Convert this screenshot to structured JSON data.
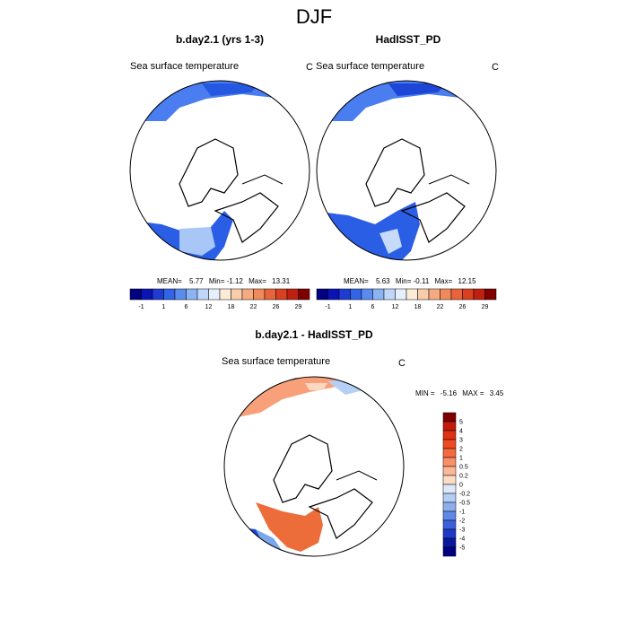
{
  "figure": {
    "title": "DJF"
  },
  "panels": [
    {
      "title": "b.day2.1 (yrs 1-3)",
      "variable": "Sea surface temperature",
      "units": "C",
      "stats": {
        "mean_label": "MEAN=",
        "mean": "5.77",
        "min_label": "Min=",
        "min": "-1.12",
        "max_label": "Max=",
        "max": "13.31"
      }
    },
    {
      "title": "HadISST_PD",
      "variable": "Sea surface temperature",
      "units": "C",
      "stats": {
        "mean_label": "MEAN=",
        "mean": "5.63",
        "min_label": "Min=",
        "min": "-0.11",
        "max_label": "Max=",
        "max": "12.15"
      }
    },
    {
      "title": "b.day2.1 - HadISST_PD",
      "variable": "Sea surface temperature",
      "units": "C",
      "stats": {
        "min_label": "MIN =",
        "min": "-5.16",
        "max_label": "MAX =",
        "max": "3.45"
      }
    }
  ],
  "chart_data": [
    {
      "type": "heatmap",
      "title": "b.day2.1 (yrs 1-3)",
      "subtitle": "Sea surface temperature",
      "units": "C",
      "projection": "north polar stereographic",
      "colorbar_orientation": "horizontal",
      "colorbar_labels": [
        "-1",
        "1",
        "6",
        "12",
        "18",
        "22",
        "26",
        "29"
      ],
      "colorbar_colors": [
        "#000080",
        "#0a14b4",
        "#1e3cd2",
        "#3264e6",
        "#5a8cf0",
        "#8cb4f5",
        "#bed7fa",
        "#e6f0fc",
        "#fcebd7",
        "#f9ccaa",
        "#f5aa80",
        "#f08a5a",
        "#e8643a",
        "#d94020",
        "#c02010",
        "#800000"
      ],
      "stats": {
        "mean": 5.77,
        "min": -1.12,
        "max": 13.31
      }
    },
    {
      "type": "heatmap",
      "title": "HadISST_PD",
      "subtitle": "Sea surface temperature",
      "units": "C",
      "projection": "north polar stereographic",
      "colorbar_orientation": "horizontal",
      "colorbar_labels": [
        "-1",
        "1",
        "6",
        "12",
        "18",
        "22",
        "26",
        "29"
      ],
      "colorbar_colors": [
        "#000080",
        "#0a14b4",
        "#1e3cd2",
        "#3264e6",
        "#5a8cf0",
        "#8cb4f5",
        "#bed7fa",
        "#e6f0fc",
        "#fcebd7",
        "#f9ccaa",
        "#f5aa80",
        "#f08a5a",
        "#e8643a",
        "#d94020",
        "#c02010",
        "#800000"
      ],
      "stats": {
        "mean": 5.63,
        "min": -0.11,
        "max": 12.15
      }
    },
    {
      "type": "heatmap",
      "title": "b.day2.1 - HadISST_PD",
      "subtitle": "Sea surface temperature",
      "units": "C",
      "projection": "north polar stereographic",
      "colorbar_orientation": "vertical",
      "colorbar_labels": [
        "5",
        "4",
        "3",
        "2",
        "1",
        "0.5",
        "0.2",
        "0",
        "-0.2",
        "-0.5",
        "-1",
        "-2",
        "-3",
        "-4",
        "-5"
      ],
      "colorbar_colors": [
        "#800000",
        "#c41a0a",
        "#e03214",
        "#f04a20",
        "#f56a3c",
        "#f89068",
        "#fbb896",
        "#fcdcc4",
        "#dce9fb",
        "#b4cdf5",
        "#8cb0ee",
        "#6088e6",
        "#3a60dc",
        "#1e38c8",
        "#0a18a0",
        "#000080"
      ],
      "stats": {
        "min": -5.16,
        "max": 3.45
      }
    }
  ]
}
